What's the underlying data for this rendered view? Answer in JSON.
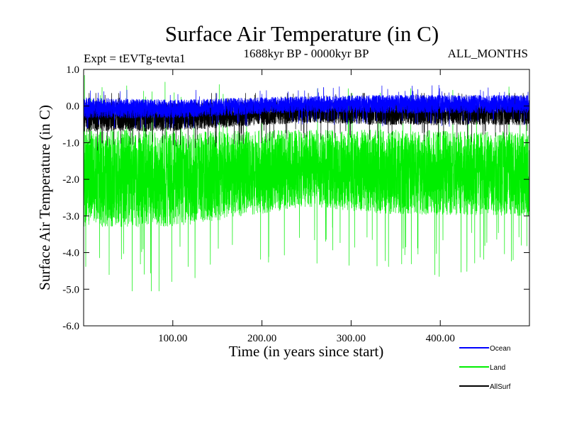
{
  "chart_data": {
    "type": "line",
    "title": "Surface Air Temperature (in C)",
    "experiment_label": "Expt = tEVTg-tevta1",
    "period_label": "1688kyr BP - 0000kyr BP",
    "months_label": "ALL_MONTHS",
    "xlabel": "Time (in years since start)",
    "ylabel": "Surface Air Temperature (in C)",
    "xlim": [
      0,
      500
    ],
    "ylim": [
      -6.0,
      1.0
    ],
    "x_ticks": [
      100,
      200,
      300,
      400
    ],
    "x_tick_labels": [
      "100.00",
      "200.00",
      "300.00",
      "400.00"
    ],
    "y_ticks": [
      1.0,
      0.0,
      -1.0,
      -2.0,
      -3.0,
      -4.0,
      -5.0,
      -6.0
    ],
    "y_tick_labels": [
      "1.0",
      "0.0",
      "-1.0",
      "-2.0",
      "-3.0",
      "-4.0",
      "-5.0",
      "-6.0"
    ],
    "n_samples_per_year": 12,
    "grid": false,
    "legend_position": "bottom-right",
    "series": [
      {
        "name": "Land",
        "color": "#00ee00",
        "x_breaks": [
          0,
          100,
          250,
          340,
          500
        ],
        "mean_profile": [
          -1.95,
          -2.0,
          -1.7,
          -1.8,
          -1.85
        ],
        "half_range_profile": [
          1.35,
          1.3,
          1.05,
          1.15,
          1.15
        ],
        "observed_min": -5.05,
        "observed_max": 0.92
      },
      {
        "name": "AllSurf",
        "color": "#000000",
        "x_breaks": [
          0,
          100,
          250,
          340,
          500
        ],
        "mean_profile": [
          -0.3,
          -0.3,
          -0.15,
          -0.2,
          -0.2
        ],
        "half_range_profile": [
          0.4,
          0.38,
          0.3,
          0.32,
          0.32
        ],
        "observed_min": -1.25,
        "observed_max": 0.35
      },
      {
        "name": "Ocean",
        "color": "#0000ff",
        "x_breaks": [
          0,
          100,
          250,
          340,
          500
        ],
        "mean_profile": [
          -0.05,
          -0.08,
          0.05,
          0.05,
          0.05
        ],
        "half_range_profile": [
          0.28,
          0.25,
          0.22,
          0.25,
          0.25
        ],
        "observed_min": -0.6,
        "observed_max": 0.6
      }
    ],
    "legend": [
      {
        "name": "Ocean",
        "color": "#0000ff"
      },
      {
        "name": "Land",
        "color": "#00ee00"
      },
      {
        "name": "AllSurf",
        "color": "#000000"
      }
    ]
  }
}
